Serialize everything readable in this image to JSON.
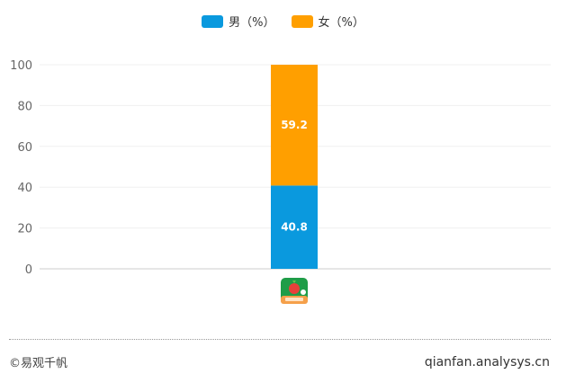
{
  "chart_data": {
    "type": "bar",
    "stacked": true,
    "categories": [
      ""
    ],
    "series": [
      {
        "name": "男（%）",
        "values": [
          40.8
        ],
        "color": "#0a99de"
      },
      {
        "name": "女（%）",
        "values": [
          59.2
        ],
        "color": "#ff9f00"
      }
    ],
    "ylim": [
      0,
      100
    ],
    "yticks": [
      "0",
      "20",
      "40",
      "60",
      "80",
      "100"
    ],
    "data_labels": [
      "40.8",
      "59.2"
    ],
    "grid": true,
    "legend_position": "top-center"
  },
  "category_icon": "app-icon",
  "footer": {
    "left": "©易观千帆",
    "right": "qianfan.analysys.cn"
  }
}
